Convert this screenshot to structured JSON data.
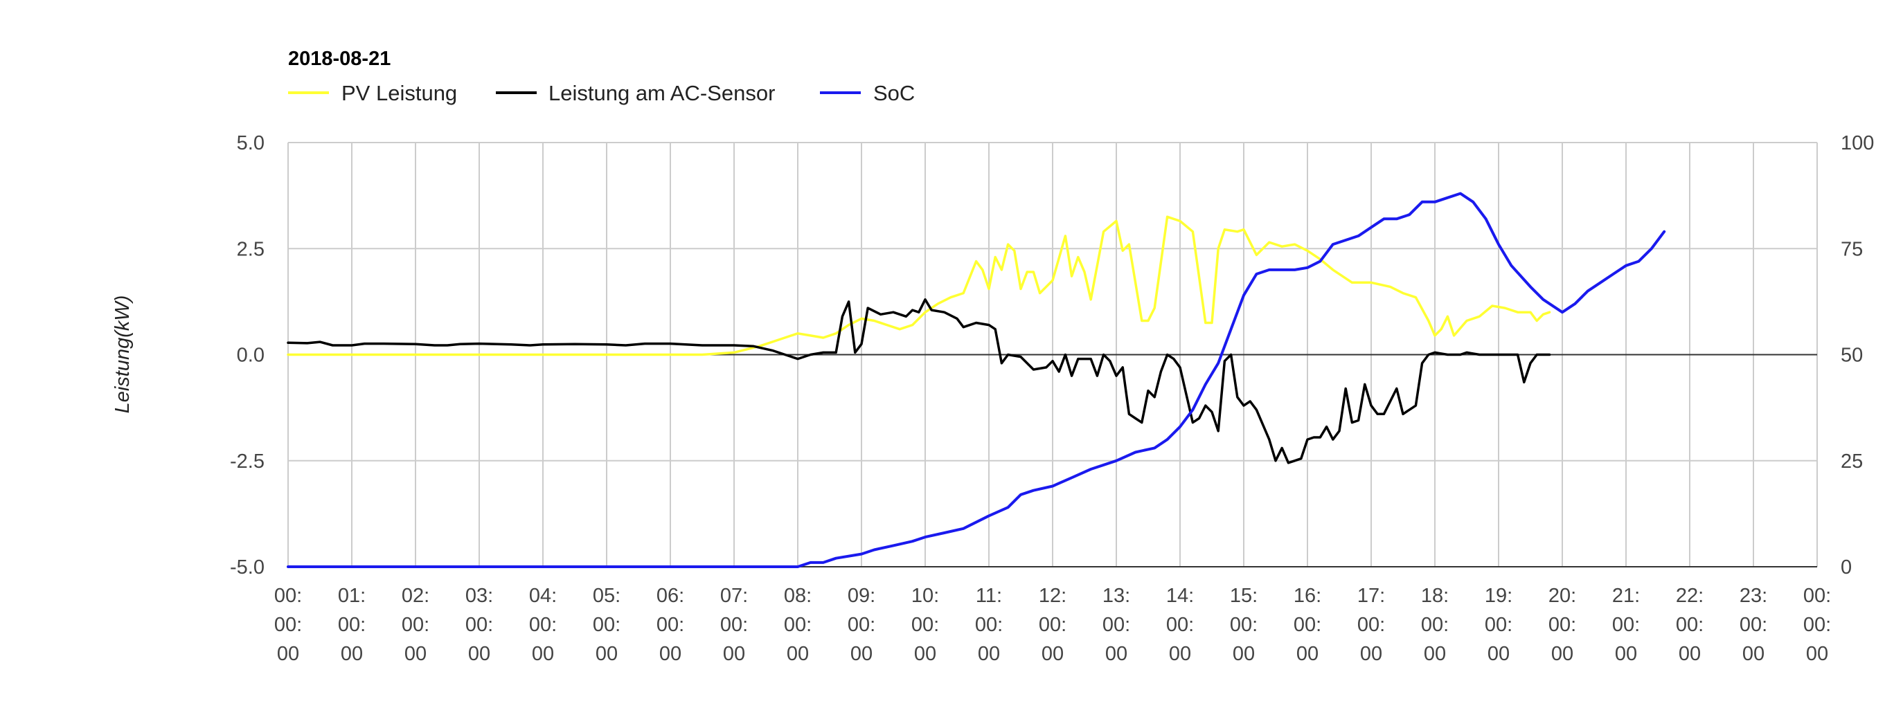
{
  "chart_data": {
    "type": "line",
    "title": "2018-08-21",
    "ylabel": "Leistung(kW)",
    "ylim": [
      -5,
      5
    ],
    "y_ticks": [
      "5.0",
      "2.5",
      "0.0",
      "-2.5",
      "-5.0"
    ],
    "y2lim": [
      0,
      100
    ],
    "y2_ticks": [
      "100",
      "75",
      "50",
      "25",
      "0"
    ],
    "xlim": [
      0,
      24
    ],
    "x_tick_labels": [
      [
        "00:",
        "00:",
        "00"
      ],
      [
        "01:",
        "00:",
        "00"
      ],
      [
        "02:",
        "00:",
        "00"
      ],
      [
        "03:",
        "00:",
        "00"
      ],
      [
        "04:",
        "00:",
        "00"
      ],
      [
        "05:",
        "00:",
        "00"
      ],
      [
        "06:",
        "00:",
        "00"
      ],
      [
        "07:",
        "00:",
        "00"
      ],
      [
        "08:",
        "00:",
        "00"
      ],
      [
        "09:",
        "00:",
        "00"
      ],
      [
        "10:",
        "00:",
        "00"
      ],
      [
        "11:",
        "00:",
        "00"
      ],
      [
        "12:",
        "00:",
        "00"
      ],
      [
        "13:",
        "00:",
        "00"
      ],
      [
        "14:",
        "00:",
        "00"
      ],
      [
        "15:",
        "00:",
        "00"
      ],
      [
        "16:",
        "00:",
        "00"
      ],
      [
        "17:",
        "00:",
        "00"
      ],
      [
        "18:",
        "00:",
        "00"
      ],
      [
        "19:",
        "00:",
        "00"
      ],
      [
        "20:",
        "00:",
        "00"
      ],
      [
        "21:",
        "00:",
        "00"
      ],
      [
        "22:",
        "00:",
        "00"
      ],
      [
        "23:",
        "00:",
        "00"
      ],
      [
        "00:",
        "00:",
        "00"
      ]
    ],
    "grid": true,
    "legend_position": "top-left",
    "series": [
      {
        "name": "PV Leistung",
        "color": "#ffff33",
        "axis": "left",
        "points": [
          [
            0,
            0.0
          ],
          [
            6.5,
            0.0
          ],
          [
            7.0,
            0.05
          ],
          [
            7.4,
            0.2
          ],
          [
            7.7,
            0.35
          ],
          [
            8.0,
            0.5
          ],
          [
            8.2,
            0.45
          ],
          [
            8.4,
            0.4
          ],
          [
            8.6,
            0.5
          ],
          [
            8.8,
            0.7
          ],
          [
            9.0,
            0.85
          ],
          [
            9.2,
            0.8
          ],
          [
            9.4,
            0.7
          ],
          [
            9.6,
            0.6
          ],
          [
            9.8,
            0.7
          ],
          [
            10.0,
            1.0
          ],
          [
            10.2,
            1.2
          ],
          [
            10.4,
            1.35
          ],
          [
            10.6,
            1.45
          ],
          [
            10.8,
            2.2
          ],
          [
            10.9,
            2.0
          ],
          [
            11.0,
            1.55
          ],
          [
            11.1,
            2.3
          ],
          [
            11.2,
            2.0
          ],
          [
            11.3,
            2.6
          ],
          [
            11.4,
            2.45
          ],
          [
            11.5,
            1.55
          ],
          [
            11.6,
            1.95
          ],
          [
            11.7,
            1.95
          ],
          [
            11.8,
            1.45
          ],
          [
            12.0,
            1.75
          ],
          [
            12.2,
            2.8
          ],
          [
            12.3,
            1.85
          ],
          [
            12.4,
            2.3
          ],
          [
            12.5,
            1.95
          ],
          [
            12.6,
            1.3
          ],
          [
            12.8,
            2.9
          ],
          [
            13.0,
            3.15
          ],
          [
            13.1,
            2.45
          ],
          [
            13.2,
            2.6
          ],
          [
            13.4,
            0.8
          ],
          [
            13.5,
            0.8
          ],
          [
            13.6,
            1.1
          ],
          [
            13.8,
            3.25
          ],
          [
            14.0,
            3.15
          ],
          [
            14.2,
            2.9
          ],
          [
            14.4,
            0.75
          ],
          [
            14.5,
            0.75
          ],
          [
            14.6,
            2.5
          ],
          [
            14.7,
            2.95
          ],
          [
            14.9,
            2.9
          ],
          [
            15.0,
            2.95
          ],
          [
            15.2,
            2.35
          ],
          [
            15.4,
            2.65
          ],
          [
            15.6,
            2.55
          ],
          [
            15.8,
            2.6
          ],
          [
            16.0,
            2.45
          ],
          [
            16.2,
            2.25
          ],
          [
            16.4,
            2.0
          ],
          [
            16.7,
            1.7
          ],
          [
            17.0,
            1.7
          ],
          [
            17.3,
            1.6
          ],
          [
            17.5,
            1.45
          ],
          [
            17.7,
            1.35
          ],
          [
            17.9,
            0.8
          ],
          [
            18.0,
            0.45
          ],
          [
            18.1,
            0.6
          ],
          [
            18.2,
            0.9
          ],
          [
            18.3,
            0.45
          ],
          [
            18.5,
            0.8
          ],
          [
            18.7,
            0.9
          ],
          [
            18.9,
            1.15
          ],
          [
            19.1,
            1.1
          ],
          [
            19.3,
            1.0
          ],
          [
            19.5,
            1.0
          ],
          [
            19.6,
            0.8
          ],
          [
            19.7,
            0.95
          ],
          [
            19.8,
            1.0
          ]
        ]
      },
      {
        "name": "Leistung am AC-Sensor",
        "color": "#000000",
        "axis": "left",
        "points": [
          [
            0,
            0.28
          ],
          [
            0.3,
            0.27
          ],
          [
            0.5,
            0.3
          ],
          [
            0.7,
            0.22
          ],
          [
            1.0,
            0.22
          ],
          [
            1.2,
            0.26
          ],
          [
            1.5,
            0.26
          ],
          [
            2.0,
            0.25
          ],
          [
            2.3,
            0.22
          ],
          [
            2.5,
            0.22
          ],
          [
            2.7,
            0.25
          ],
          [
            3.0,
            0.26
          ],
          [
            3.5,
            0.24
          ],
          [
            3.8,
            0.22
          ],
          [
            4.0,
            0.24
          ],
          [
            4.5,
            0.25
          ],
          [
            5.0,
            0.24
          ],
          [
            5.3,
            0.22
          ],
          [
            5.6,
            0.26
          ],
          [
            6.0,
            0.26
          ],
          [
            6.5,
            0.22
          ],
          [
            7.0,
            0.22
          ],
          [
            7.3,
            0.2
          ],
          [
            7.6,
            0.1
          ],
          [
            7.8,
            0.0
          ],
          [
            8.0,
            -0.1
          ],
          [
            8.2,
            0.0
          ],
          [
            8.4,
            0.05
          ],
          [
            8.6,
            0.05
          ],
          [
            8.7,
            0.9
          ],
          [
            8.8,
            1.25
          ],
          [
            8.9,
            0.05
          ],
          [
            9.0,
            0.25
          ],
          [
            9.1,
            1.1
          ],
          [
            9.3,
            0.95
          ],
          [
            9.5,
            1.0
          ],
          [
            9.7,
            0.9
          ],
          [
            9.8,
            1.05
          ],
          [
            9.9,
            1.0
          ],
          [
            10.0,
            1.3
          ],
          [
            10.1,
            1.05
          ],
          [
            10.3,
            1.0
          ],
          [
            10.5,
            0.85
          ],
          [
            10.6,
            0.65
          ],
          [
            10.8,
            0.75
          ],
          [
            11.0,
            0.7
          ],
          [
            11.1,
            0.6
          ],
          [
            11.2,
            -0.2
          ],
          [
            11.3,
            0.0
          ],
          [
            11.5,
            -0.05
          ],
          [
            11.7,
            -0.35
          ],
          [
            11.9,
            -0.3
          ],
          [
            12.0,
            -0.15
          ],
          [
            12.1,
            -0.4
          ],
          [
            12.2,
            0.0
          ],
          [
            12.3,
            -0.5
          ],
          [
            12.4,
            -0.1
          ],
          [
            12.6,
            -0.1
          ],
          [
            12.7,
            -0.5
          ],
          [
            12.8,
            0.0
          ],
          [
            12.9,
            -0.15
          ],
          [
            13.0,
            -0.5
          ],
          [
            13.1,
            -0.3
          ],
          [
            13.2,
            -1.4
          ],
          [
            13.3,
            -1.5
          ],
          [
            13.4,
            -1.6
          ],
          [
            13.5,
            -0.85
          ],
          [
            13.6,
            -1.0
          ],
          [
            13.7,
            -0.4
          ],
          [
            13.8,
            0.0
          ],
          [
            13.9,
            -0.1
          ],
          [
            14.0,
            -0.3
          ],
          [
            14.2,
            -1.6
          ],
          [
            14.3,
            -1.5
          ],
          [
            14.4,
            -1.2
          ],
          [
            14.5,
            -1.35
          ],
          [
            14.6,
            -1.8
          ],
          [
            14.7,
            -0.15
          ],
          [
            14.8,
            0.0
          ],
          [
            14.9,
            -1.0
          ],
          [
            15.0,
            -1.2
          ],
          [
            15.1,
            -1.1
          ],
          [
            15.2,
            -1.3
          ],
          [
            15.4,
            -2.0
          ],
          [
            15.5,
            -2.5
          ],
          [
            15.6,
            -2.2
          ],
          [
            15.7,
            -2.55
          ],
          [
            15.8,
            -2.5
          ],
          [
            15.9,
            -2.45
          ],
          [
            16.0,
            -2.0
          ],
          [
            16.1,
            -1.95
          ],
          [
            16.2,
            -1.95
          ],
          [
            16.3,
            -1.7
          ],
          [
            16.4,
            -2.0
          ],
          [
            16.5,
            -1.8
          ],
          [
            16.6,
            -0.8
          ],
          [
            16.7,
            -1.6
          ],
          [
            16.8,
            -1.55
          ],
          [
            16.9,
            -0.7
          ],
          [
            17.0,
            -1.2
          ],
          [
            17.1,
            -1.4
          ],
          [
            17.2,
            -1.4
          ],
          [
            17.3,
            -1.1
          ],
          [
            17.4,
            -0.8
          ],
          [
            17.5,
            -1.4
          ],
          [
            17.6,
            -1.3
          ],
          [
            17.7,
            -1.2
          ],
          [
            17.8,
            -0.2
          ],
          [
            17.9,
            0.0
          ],
          [
            18.0,
            0.05
          ],
          [
            18.2,
            0.0
          ],
          [
            18.4,
            0.0
          ],
          [
            18.5,
            0.05
          ],
          [
            18.7,
            0.0
          ],
          [
            19.0,
            0.0
          ],
          [
            19.3,
            0.0
          ],
          [
            19.4,
            -0.65
          ],
          [
            19.5,
            -0.2
          ],
          [
            19.6,
            0.0
          ],
          [
            19.8,
            0.0
          ]
        ]
      },
      {
        "name": "SoC",
        "color": "#1a1aee",
        "axis": "right",
        "points": [
          [
            0,
            0
          ],
          [
            8.0,
            0
          ],
          [
            8.2,
            1
          ],
          [
            8.4,
            1
          ],
          [
            8.6,
            2
          ],
          [
            9.0,
            3
          ],
          [
            9.2,
            4
          ],
          [
            9.5,
            5
          ],
          [
            9.8,
            6
          ],
          [
            10.0,
            7
          ],
          [
            10.3,
            8
          ],
          [
            10.6,
            9
          ],
          [
            11.0,
            12
          ],
          [
            11.3,
            14
          ],
          [
            11.5,
            17
          ],
          [
            11.7,
            18
          ],
          [
            12.0,
            19
          ],
          [
            12.3,
            21
          ],
          [
            12.6,
            23
          ],
          [
            13.0,
            25
          ],
          [
            13.3,
            27
          ],
          [
            13.6,
            28
          ],
          [
            13.8,
            30
          ],
          [
            14.0,
            33
          ],
          [
            14.2,
            37
          ],
          [
            14.4,
            43
          ],
          [
            14.6,
            48
          ],
          [
            14.8,
            56
          ],
          [
            15.0,
            64
          ],
          [
            15.2,
            69
          ],
          [
            15.4,
            70
          ],
          [
            15.6,
            70
          ],
          [
            15.8,
            70
          ],
          [
            16.0,
            70.5
          ],
          [
            16.2,
            72
          ],
          [
            16.4,
            76
          ],
          [
            16.6,
            77
          ],
          [
            16.8,
            78
          ],
          [
            17.0,
            80
          ],
          [
            17.2,
            82
          ],
          [
            17.4,
            82
          ],
          [
            17.6,
            83
          ],
          [
            17.8,
            86
          ],
          [
            18.0,
            86
          ],
          [
            18.2,
            87
          ],
          [
            18.4,
            88
          ],
          [
            18.6,
            86
          ],
          [
            18.8,
            82
          ],
          [
            19.0,
            76
          ],
          [
            19.2,
            71
          ],
          [
            19.5,
            66
          ],
          [
            19.7,
            63
          ],
          [
            20.0,
            60
          ],
          [
            20.2,
            62
          ],
          [
            20.4,
            65
          ],
          [
            20.6,
            67
          ],
          [
            20.8,
            69
          ],
          [
            21.0,
            71
          ],
          [
            21.2,
            72
          ],
          [
            21.4,
            75
          ],
          [
            21.6,
            79
          ]
        ]
      }
    ]
  }
}
